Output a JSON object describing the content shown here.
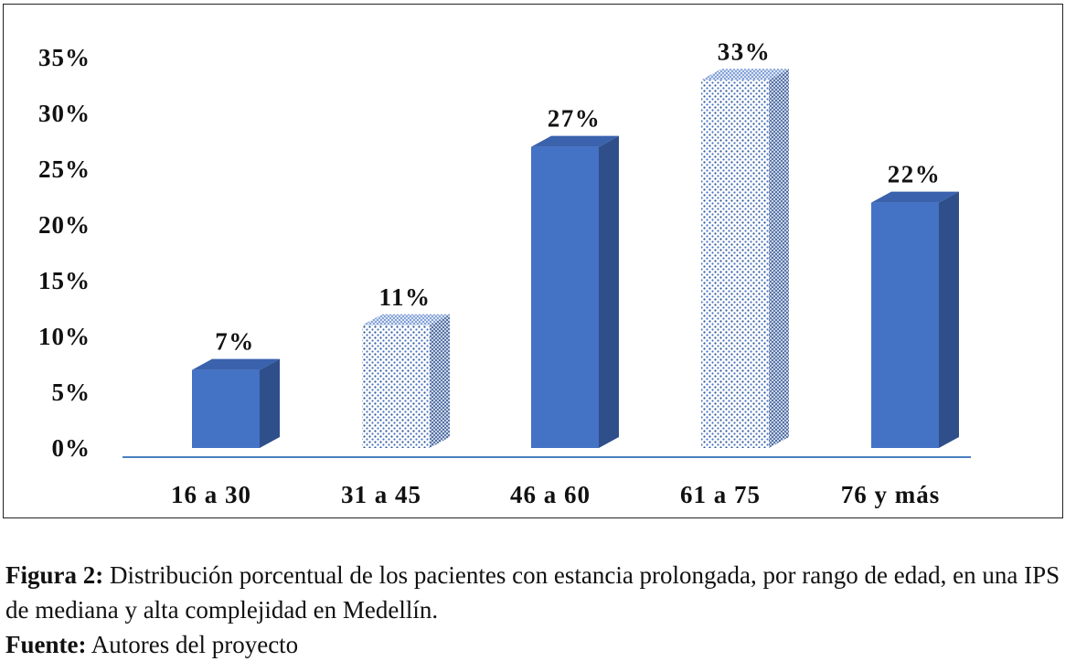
{
  "chart_data": {
    "type": "bar",
    "categories": [
      "16 a 30",
      "31 a 45",
      "46 a 60",
      "61 a 75",
      "76 y más"
    ],
    "values": [
      7,
      11,
      27,
      33,
      22
    ],
    "data_labels": [
      "7%",
      "11%",
      "27%",
      "33%",
      "22%"
    ],
    "fill_styles": [
      "solid",
      "dotted",
      "solid",
      "dotted",
      "solid"
    ],
    "y_ticks": [
      "0%",
      "5%",
      "10%",
      "15%",
      "20%",
      "25%",
      "30%",
      "35%"
    ],
    "ylim": [
      0,
      35
    ],
    "grid": false,
    "legend": "none",
    "style": "3d-column",
    "colors": {
      "front": "#4472c4",
      "side": "#2f4f8a",
      "top": "#3a62ad",
      "axis": "#4a7fc0"
    }
  },
  "caption": {
    "figure_label": "Figura 2:",
    "figure_text": " Distribución porcentual de los pacientes con estancia prolongada, por rango de edad, en una IPS de mediana y alta complejidad en Medellín.",
    "source_label": "Fuente:",
    "source_text": " Autores del proyecto"
  }
}
